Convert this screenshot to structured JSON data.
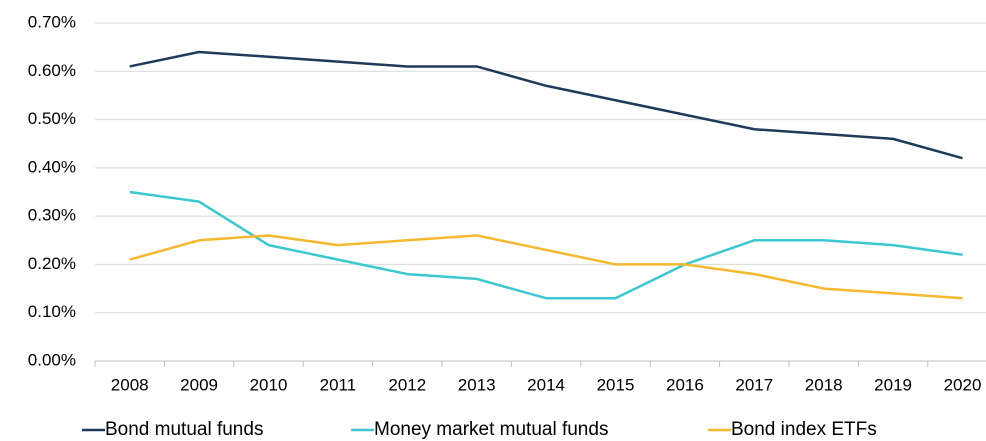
{
  "chart_data": {
    "type": "line",
    "categories": [
      "2008",
      "2009",
      "2010",
      "2011",
      "2012",
      "2013",
      "2014",
      "2015",
      "2016",
      "2017",
      "2018",
      "2019",
      "2020"
    ],
    "series": [
      {
        "name": "Bond mutual funds",
        "color": "#1f3b5a",
        "values": [
          0.61,
          0.64,
          0.63,
          0.62,
          0.61,
          0.61,
          0.57,
          0.54,
          0.51,
          0.48,
          0.47,
          0.46,
          0.42
        ]
      },
      {
        "name": "Money market mutual funds",
        "color": "#3cc8d0",
        "values": [
          0.35,
          0.33,
          0.24,
          0.21,
          0.18,
          0.17,
          0.13,
          0.13,
          0.2,
          0.25,
          0.25,
          0.24,
          0.22
        ]
      },
      {
        "name": "Bond index ETFs",
        "color": "#f5b82e",
        "values": [
          0.21,
          0.25,
          0.26,
          0.24,
          0.25,
          0.26,
          0.23,
          0.2,
          0.2,
          0.18,
          0.15,
          0.14,
          0.13
        ]
      }
    ],
    "ylim": [
      0,
      0.7
    ],
    "yticks": [
      {
        "value": 0,
        "label": "0.00%"
      },
      {
        "value": 0.1,
        "label": "0.10%"
      },
      {
        "value": 0.2,
        "label": "0.20%"
      },
      {
        "value": 0.3,
        "label": "0.30%"
      },
      {
        "value": 0.4,
        "label": "0.40%"
      },
      {
        "value": 0.5,
        "label": "0.50%"
      },
      {
        "value": 0.6,
        "label": "0.60%"
      },
      {
        "value": 0.7,
        "label": "0.70%"
      }
    ],
    "grid": true,
    "legend": "bottom"
  }
}
